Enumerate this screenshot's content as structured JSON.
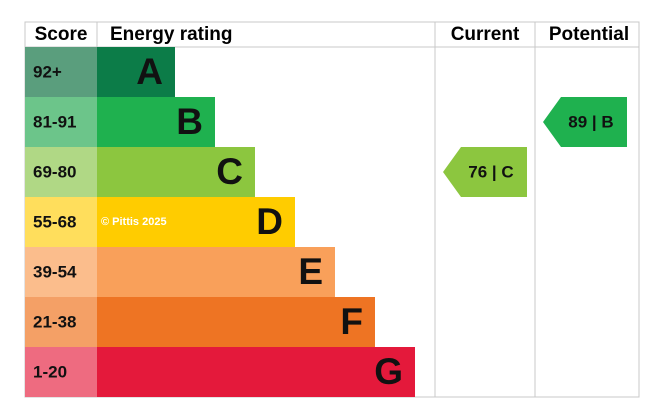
{
  "header": {
    "score": "Score",
    "energy_rating": "Energy rating",
    "current": "Current",
    "potential": "Potential"
  },
  "bands": [
    {
      "score": "92+",
      "letter": "A",
      "color": "#0c7c48",
      "score_color": "#5a9e7d"
    },
    {
      "score": "81-91",
      "letter": "B",
      "color": "#1fb14f",
      "score_color": "#6cc58a"
    },
    {
      "score": "69-80",
      "letter": "C",
      "color": "#8cc63f",
      "score_color": "#b0d885"
    },
    {
      "score": "55-68",
      "letter": "D",
      "color": "#ffcc00",
      "score_color": "#ffde5c"
    },
    {
      "score": "39-54",
      "letter": "E",
      "color": "#f9a05a",
      "score_color": "#fbbd8c"
    },
    {
      "score": "21-38",
      "letter": "F",
      "color": "#ee7423",
      "score_color": "#f4a066"
    },
    {
      "score": "1-20",
      "letter": "G",
      "color": "#e4193b",
      "score_color": "#ee6b80"
    }
  ],
  "current": {
    "label": "76 | C",
    "band": "C"
  },
  "potential": {
    "label": "89 | B",
    "band": "B"
  },
  "watermark": "© Pittis 2025"
}
